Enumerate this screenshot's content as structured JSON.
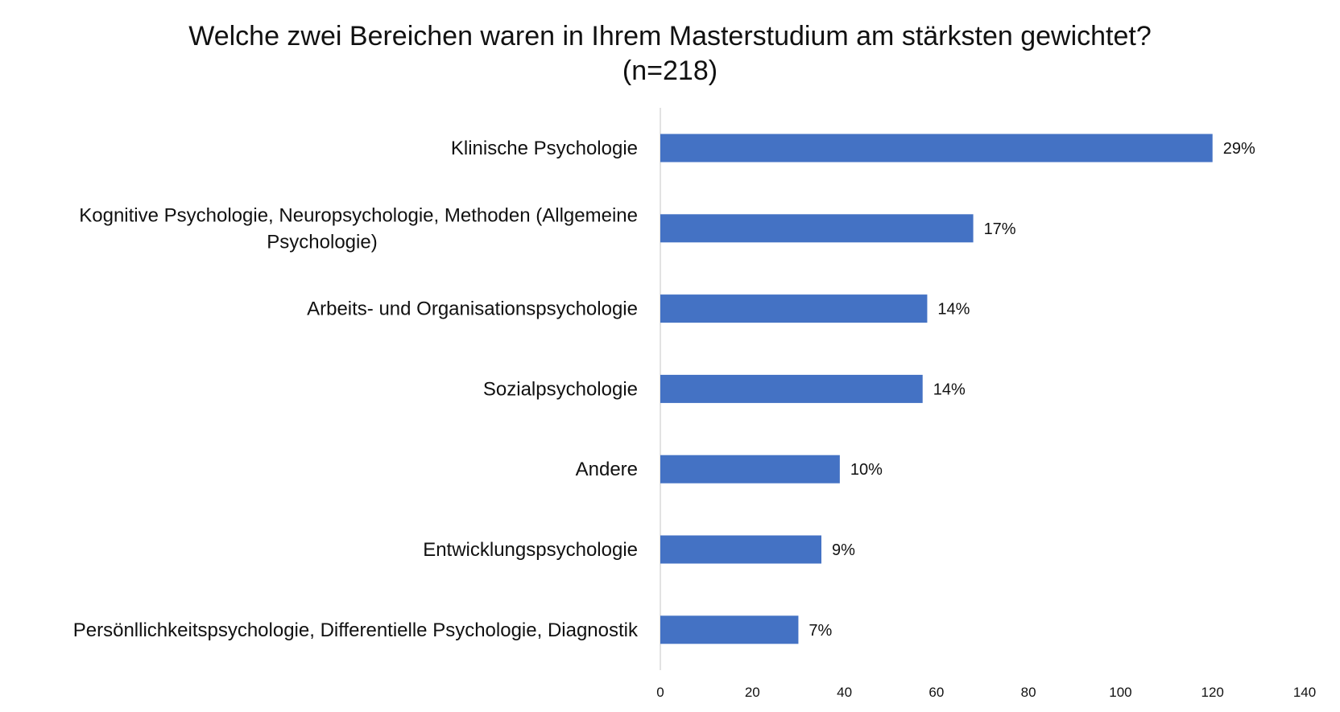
{
  "chart_data": {
    "type": "bar",
    "orientation": "horizontal",
    "title": "Welche zwei Bereichen waren in Ihrem Masterstudium am stärksten gewichtet?",
    "subtitle": "(n=218)",
    "categories": [
      "Klinische Psychologie",
      "Kognitive Psychologie, Neuropsychologie, Methoden (Allgemeine Psychologie)",
      "Arbeits- und Organisationspsychologie",
      "Sozialpsychologie",
      "Andere",
      "Entwicklungspsychologie",
      "Persönllichkeitspsychologie, Differentielle Psychologie, Diagnostik"
    ],
    "category_lines": [
      [
        "Klinische Psychologie"
      ],
      [
        "Kognitive Psychologie, Neuropsychologie, Methoden (Allgemeine",
        "Psychologie)"
      ],
      [
        "Arbeits- und Organisationspsychologie"
      ],
      [
        "Sozialpsychologie"
      ],
      [
        "Andere"
      ],
      [
        "Entwicklungspsychologie"
      ],
      [
        "Persönllichkeitspsychologie, Differentielle Psychologie, Diagnostik"
      ]
    ],
    "values": [
      120,
      68,
      58,
      57,
      39,
      35,
      30
    ],
    "data_labels": [
      "29%",
      "17%",
      "14%",
      "14%",
      "10%",
      "9%",
      "7%"
    ],
    "xlim": [
      0,
      140
    ],
    "xticks": [
      0,
      20,
      40,
      60,
      80,
      100,
      120,
      140
    ],
    "xlabel": "",
    "ylabel": "",
    "grid": false,
    "legend": "none",
    "bar_color": "#4472C4",
    "axis_color": "#D9D9D9"
  }
}
